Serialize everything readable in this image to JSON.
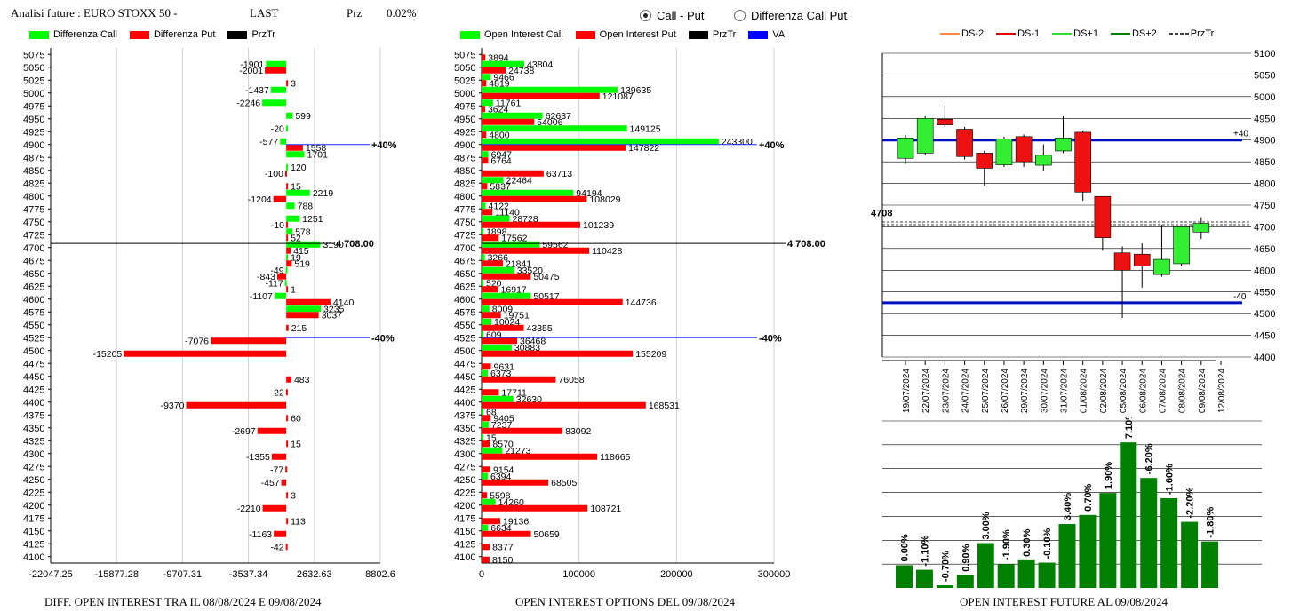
{
  "header": {
    "title": "Analisi future : EURO STOXX 50 -",
    "last_label": "LAST",
    "prz_label": "Prz",
    "prz_value": "0.02%"
  },
  "radio": {
    "option1": "Call - Put",
    "option2": "Differenza Call Put",
    "selected": "option1"
  },
  "legend_left": {
    "diff_call": "Differenza Call",
    "diff_put": "Differenza Put",
    "prztr": "PrzTr"
  },
  "legend_mid": {
    "oi_call": "Open Interest Call",
    "oi_put": "Open Interest Put",
    "prztr": "PrzTr",
    "va": "VA"
  },
  "legend_right": {
    "ds_m2": "DS-2",
    "ds_m1": "DS-1",
    "ds_p1": "DS+1",
    "ds_p2": "DS+2",
    "prztr": "PrzTr"
  },
  "footer": {
    "left": "DIFF. OPEN INTEREST TRA IL 08/08/2024 E 09/08/2024",
    "mid": "OPEN INTEREST OPTIONS DEL 09/08/2024",
    "right": "OPEN INTEREST FUTURE AL 09/08/2024"
  },
  "colors": {
    "call": "#00ff00",
    "put": "#ff0000",
    "prztr": "#000000",
    "va": "#0000ff",
    "bar_dark": "#008000",
    "ds_m2": "#ff8c40"
  },
  "chart_data": [
    {
      "type": "bar",
      "orientation": "horizontal",
      "strikes": [
        5075,
        5050,
        5025,
        5000,
        4975,
        4950,
        4925,
        4900,
        4875,
        4850,
        4825,
        4800,
        4775,
        4750,
        4725,
        4700,
        4675,
        4650,
        4625,
        4600,
        4575,
        4550,
        4525,
        4500,
        4475,
        4450,
        4425,
        4400,
        4375,
        4350,
        4325,
        4300,
        4275,
        4250,
        4225,
        4200,
        4175,
        4150,
        4125,
        4100
      ],
      "series": [
        {
          "name": "Differenza Call",
          "values": [
            null,
            -1901,
            null,
            -1437,
            -2246,
            599,
            -20,
            -577,
            1701,
            120,
            null,
            2219,
            788,
            1251,
            578,
            3190,
            19,
            -49,
            -117,
            -1107,
            3235,
            null,
            null,
            null,
            null,
            null,
            null,
            null,
            null,
            null,
            null,
            null,
            null,
            null,
            null,
            null,
            null,
            null,
            null,
            null
          ]
        },
        {
          "name": "Differenza Put",
          "values": [
            null,
            -2001,
            3,
            null,
            null,
            null,
            null,
            1558,
            null,
            -100,
            15,
            -1204,
            null,
            -10,
            52,
            415,
            519,
            -843,
            1,
            4140,
            3037,
            215,
            -7076,
            -15205,
            null,
            483,
            -22,
            -9370,
            60,
            -2697,
            15,
            -1355,
            -77,
            -457,
            3,
            -2210,
            113,
            -1163,
            -42,
            null
          ]
        }
      ],
      "xticks": [
        "-22047.25",
        "-15877.28",
        "-9707.31",
        "-3537.34",
        "2632.63",
        "8802.6"
      ],
      "xlim": [
        -22047.25,
        8802.6
      ],
      "prztr_value": "4 708.00",
      "prztr_strike": 4708,
      "va_lines": [
        {
          "strike": 4900,
          "label": "+40%"
        },
        {
          "strike": 4525,
          "label": "-40%"
        }
      ]
    },
    {
      "type": "bar",
      "orientation": "horizontal",
      "strikes": [
        5075,
        5050,
        5025,
        5000,
        4975,
        4950,
        4925,
        4900,
        4875,
        4850,
        4825,
        4800,
        4775,
        4750,
        4725,
        4700,
        4675,
        4650,
        4625,
        4600,
        4575,
        4550,
        4525,
        4500,
        4475,
        4450,
        4425,
        4400,
        4375,
        4350,
        4325,
        4300,
        4275,
        4250,
        4225,
        4200,
        4175,
        4150,
        4125,
        4100
      ],
      "series": [
        {
          "name": "Open Interest Call",
          "values": [
            null,
            43804,
            9466,
            139635,
            11761,
            62637,
            149125,
            243300,
            6947,
            null,
            22464,
            94194,
            4122,
            28728,
            1898,
            59562,
            3266,
            33520,
            520,
            50517,
            8009,
            10024,
            609,
            30883,
            null,
            6373,
            null,
            32630,
            68,
            7237,
            15,
            21273,
            null,
            6394,
            null,
            14260,
            null,
            6634,
            null,
            null
          ]
        },
        {
          "name": "Open Interest Put",
          "values": [
            3894,
            24738,
            4819,
            121087,
            3624,
            54006,
            4800,
            147822,
            6764,
            63713,
            5837,
            108029,
            11140,
            101239,
            17562,
            110428,
            21841,
            50475,
            16917,
            144736,
            19751,
            43355,
            36468,
            155209,
            9631,
            76058,
            17711,
            168531,
            9405,
            83092,
            8570,
            118665,
            9154,
            68505,
            5598,
            108721,
            19136,
            50659,
            8377,
            8150
          ]
        }
      ],
      "xticks": [
        "0",
        "100000",
        "200000",
        "300000"
      ],
      "xlim": [
        0,
        300000
      ],
      "prztr_value": "4 708.00",
      "prztr_strike": 4708,
      "va_lines": [
        {
          "strike": 4900,
          "label": "+40%"
        },
        {
          "strike": 4525,
          "label": "-40%"
        }
      ]
    },
    {
      "type": "candlestick",
      "dates": [
        "19/07/2024",
        "22/07/2024",
        "23/07/2024",
        "24/07/2024",
        "25/07/2024",
        "26/07/2024",
        "29/07/2024",
        "30/07/2024",
        "31/07/2024",
        "01/08/2024",
        "02/08/2024",
        "05/08/2024",
        "06/08/2024",
        "07/08/2024",
        "08/08/2024",
        "09/08/2024",
        "12/08/2024"
      ],
      "candles": [
        {
          "o": 4858,
          "h": 4912,
          "l": 4845,
          "c": 4905
        },
        {
          "o": 4870,
          "h": 4955,
          "l": 4865,
          "c": 4950
        },
        {
          "o": 4948,
          "h": 4980,
          "l": 4930,
          "c": 4935
        },
        {
          "o": 4925,
          "h": 4930,
          "l": 4855,
          "c": 4862
        },
        {
          "o": 4870,
          "h": 4875,
          "l": 4795,
          "c": 4835
        },
        {
          "o": 4843,
          "h": 4908,
          "l": 4838,
          "c": 4903
        },
        {
          "o": 4908,
          "h": 4913,
          "l": 4838,
          "c": 4850
        },
        {
          "o": 4842,
          "h": 4890,
          "l": 4830,
          "c": 4865
        },
        {
          "o": 4875,
          "h": 4955,
          "l": 4870,
          "c": 4905
        },
        {
          "o": 4918,
          "h": 4922,
          "l": 4760,
          "c": 4780
        },
        {
          "o": 4770,
          "h": 4770,
          "l": 4645,
          "c": 4675
        },
        {
          "o": 4640,
          "h": 4655,
          "l": 4490,
          "c": 4600
        },
        {
          "o": 4637,
          "h": 4662,
          "l": 4560,
          "c": 4610
        },
        {
          "o": 4590,
          "h": 4705,
          "l": 4585,
          "c": 4625
        },
        {
          "o": 4615,
          "h": 4700,
          "l": 4610,
          "c": 4700
        },
        {
          "o": 4688,
          "h": 4722,
          "l": 4672,
          "c": 4708
        }
      ],
      "yticks": [
        "5100",
        "5050",
        "5000",
        "4950",
        "4900",
        "4850",
        "4800",
        "4750",
        "4700",
        "4650",
        "4600",
        "4550",
        "4500",
        "4450",
        "4400"
      ],
      "ylim": [
        4400,
        5100
      ],
      "prztr_label": "4708",
      "prztr_value": 4708,
      "va_lines": [
        {
          "value": 4900,
          "label": "+40"
        },
        {
          "value": 4525,
          "label": "-40"
        }
      ]
    },
    {
      "type": "bar",
      "categories": [
        "19/07/2024",
        "22/07/2024",
        "23/07/2024",
        "24/07/2024",
        "25/07/2024",
        "26/07/2024",
        "29/07/2024",
        "30/07/2024",
        "31/07/2024",
        "01/08/2024",
        "02/08/2024",
        "05/08/2024",
        "06/08/2024",
        "07/08/2024",
        "08/08/2024",
        "09/08/2024"
      ],
      "labels": [
        "0.00%",
        "-1.10%",
        "-0.70%",
        "0.90%",
        "3.00%",
        "-1.90%",
        "0.30%",
        "-0.10%",
        "3.40%",
        "0.70%",
        "1.90%",
        "7.10%",
        "-6.20%",
        "-1.60%",
        "-2.20%",
        "-1.80%"
      ],
      "values": [
        9.5,
        7.6,
        1.1,
        5.3,
        18.8,
        10.0,
        11.6,
        10.6,
        26.8,
        30.6,
        39.8,
        61.0,
        46.1,
        37.6,
        27.7,
        19.5
      ]
    }
  ]
}
